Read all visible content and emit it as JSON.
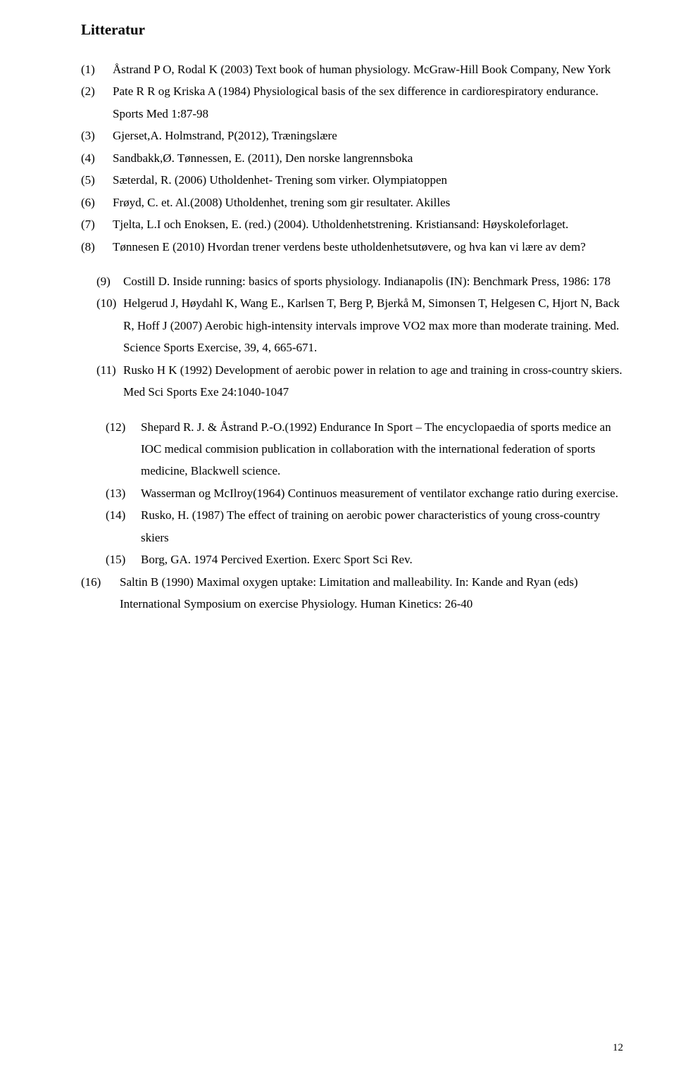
{
  "heading": "Litteratur",
  "page_number": "12",
  "references": [
    {
      "num": "(1)",
      "text": "Åstrand P O, Rodal K (2003) Text book of human physiology. McGraw-Hill Book Company, New York",
      "indent": 0
    },
    {
      "num": "(2)",
      "text": "Pate R R og Kriska A (1984) Physiological basis of the sex difference in cardiorespiratory endurance. Sports Med 1:87-98",
      "indent": 0
    },
    {
      "num": "(3)",
      "text": "Gjerset,A. Holmstrand, P(2012), Træningslære",
      "indent": 0
    },
    {
      "num": "(4)",
      "text": "Sandbakk,Ø. Tønnessen, E. (2011), Den norske langrennsboka",
      "indent": 0
    },
    {
      "num": "(5)",
      "text": "Sæterdal, R. (2006) Utholdenhet- Trening som virker. Olympiatoppen",
      "indent": 0
    },
    {
      "num": "(6)",
      "text": "Frøyd, C. et. Al.(2008) Utholdenhet, trening som gir resultater. Akilles",
      "indent": 0
    },
    {
      "num": "(7)",
      "text": "Tjelta, L.I och Enoksen, E. (red.) (2004). Utholdenhetstrening. Kristiansand: Høyskoleforlaget.",
      "indent": 0
    },
    {
      "num": "(8)",
      "text": "Tønnesen E (2010) Hvordan trener verdens beste utholdenhetsutøvere, og hva kan vi lære av dem?",
      "indent": 0
    },
    {
      "num": "(9)",
      "text": "Costill D. Inside running: basics of sports physiology. Indianapolis (IN): Benchmark Press, 1986: 178",
      "indent": 1,
      "spacer_before": true
    },
    {
      "num": "(10)",
      "text": "Helgerud J, Høydahl K, Wang E., Karlsen T, Berg P, Bjerkå M, Simonsen T, Helgesen C, Hjort N, Back R, Hoff J (2007) Aerobic high-intensity intervals improve VO2 max more than moderate training. Med. Science Sports Exercise, 39, 4, 665-671.",
      "indent": 1
    },
    {
      "num": "(11)",
      "text": "Rusko H K (1992) Development of aerobic power in relation to age and training in cross-country skiers. Med Sci Sports Exe 24:1040-1047",
      "indent": 1
    },
    {
      "num": "(12)",
      "text": "Shepard R. J. & Åstrand P.-O.(1992) Endurance In Sport – The encyclopaedia of sports medice an IOC medical commision publication in collaboration with the international federation of sports medicine, Blackwell science.",
      "indent": 2,
      "spacer_before": true
    },
    {
      "num": "(13)",
      "text": "Wasserman og McIlroy(1964) Continuos measurement of ventilator exchange ratio during exercise.",
      "indent": 2
    },
    {
      "num": "(14)",
      "text": "Rusko, H. (1987) The effect of training on aerobic power characteristics of young cross-country skiers",
      "indent": 2
    },
    {
      "num": "(15)",
      "text": "Borg, GA. 1974 Percived Exertion. Exerc Sport Sci Rev.",
      "indent": 2
    },
    {
      "num": "(16)",
      "text": "Saltin B (1990) Maximal oxygen uptake: Limitation and malleability. In: Kande and Ryan (eds) International Symposium on exercise Physiology. Human Kinetics: 26-40",
      "indent": 3
    }
  ]
}
